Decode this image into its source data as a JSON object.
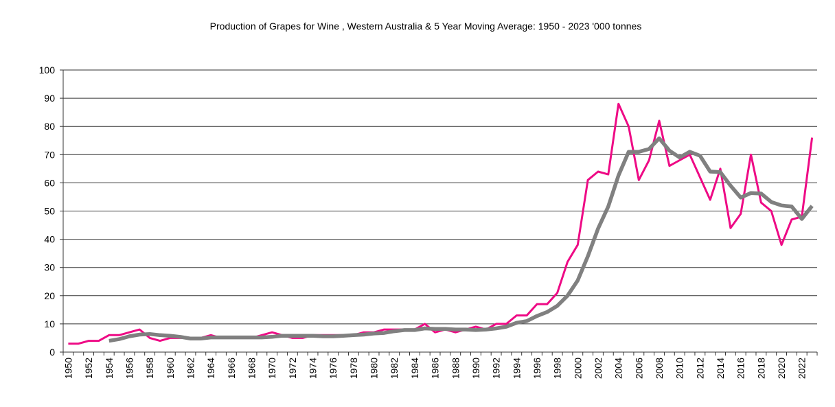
{
  "chart_data": {
    "type": "line",
    "title": "Production of Grapes for Wine , Western Australia & 5 Year Moving Average: 1950 - 2023 '000 tonnes",
    "xlabel": "",
    "ylabel": "",
    "ylim": [
      0,
      100
    ],
    "yticks": [
      0,
      10,
      20,
      30,
      40,
      50,
      60,
      70,
      80,
      90,
      100
    ],
    "grid": true,
    "x_start": 1950,
    "x_end": 2023,
    "xtick_step": 2,
    "series": [
      {
        "name": "Production",
        "color": "#ee0a85",
        "start_year": 1950,
        "values": [
          3,
          3,
          4,
          4,
          6,
          6,
          7,
          8,
          5,
          4,
          5,
          5,
          5,
          5,
          6,
          5,
          5,
          5,
          5,
          6,
          7,
          6,
          5,
          5,
          6,
          6,
          6,
          6,
          6,
          7,
          7,
          8,
          8,
          8,
          8,
          10,
          7,
          8,
          7,
          8,
          9,
          8,
          10,
          10,
          13,
          13,
          17,
          17,
          21,
          32,
          38,
          61,
          64,
          63,
          88,
          80,
          61,
          68,
          82,
          66,
          68,
          70,
          62,
          54,
          65,
          44,
          49,
          70,
          53,
          50,
          38,
          47,
          48,
          76
        ]
      },
      {
        "name": "5 Year Moving Average",
        "color": "#808080",
        "start_year": 1954,
        "values": [
          4,
          4.6,
          5.6,
          6.2,
          6.4,
          6,
          5.8,
          5.4,
          4.8,
          4.8,
          5.2,
          5.2,
          5.2,
          5.2,
          5.2,
          5.2,
          5.4,
          5.8,
          5.8,
          5.8,
          5.8,
          5.6,
          5.6,
          5.8,
          6,
          6.2,
          6.6,
          6.8,
          7.4,
          7.8,
          7.8,
          8.4,
          8.2,
          8.2,
          8,
          8,
          7.8,
          8,
          8.4,
          9,
          10.4,
          11,
          12.8,
          14.2,
          16.4,
          20,
          25.4,
          34,
          43.8,
          51.6,
          62.6,
          71,
          71,
          72,
          75.8,
          71.4,
          69,
          71,
          69.6,
          64,
          63.8,
          59,
          54.8,
          56.4,
          56.2,
          53.2,
          52,
          51.6,
          47.2,
          51.8
        ]
      }
    ]
  }
}
